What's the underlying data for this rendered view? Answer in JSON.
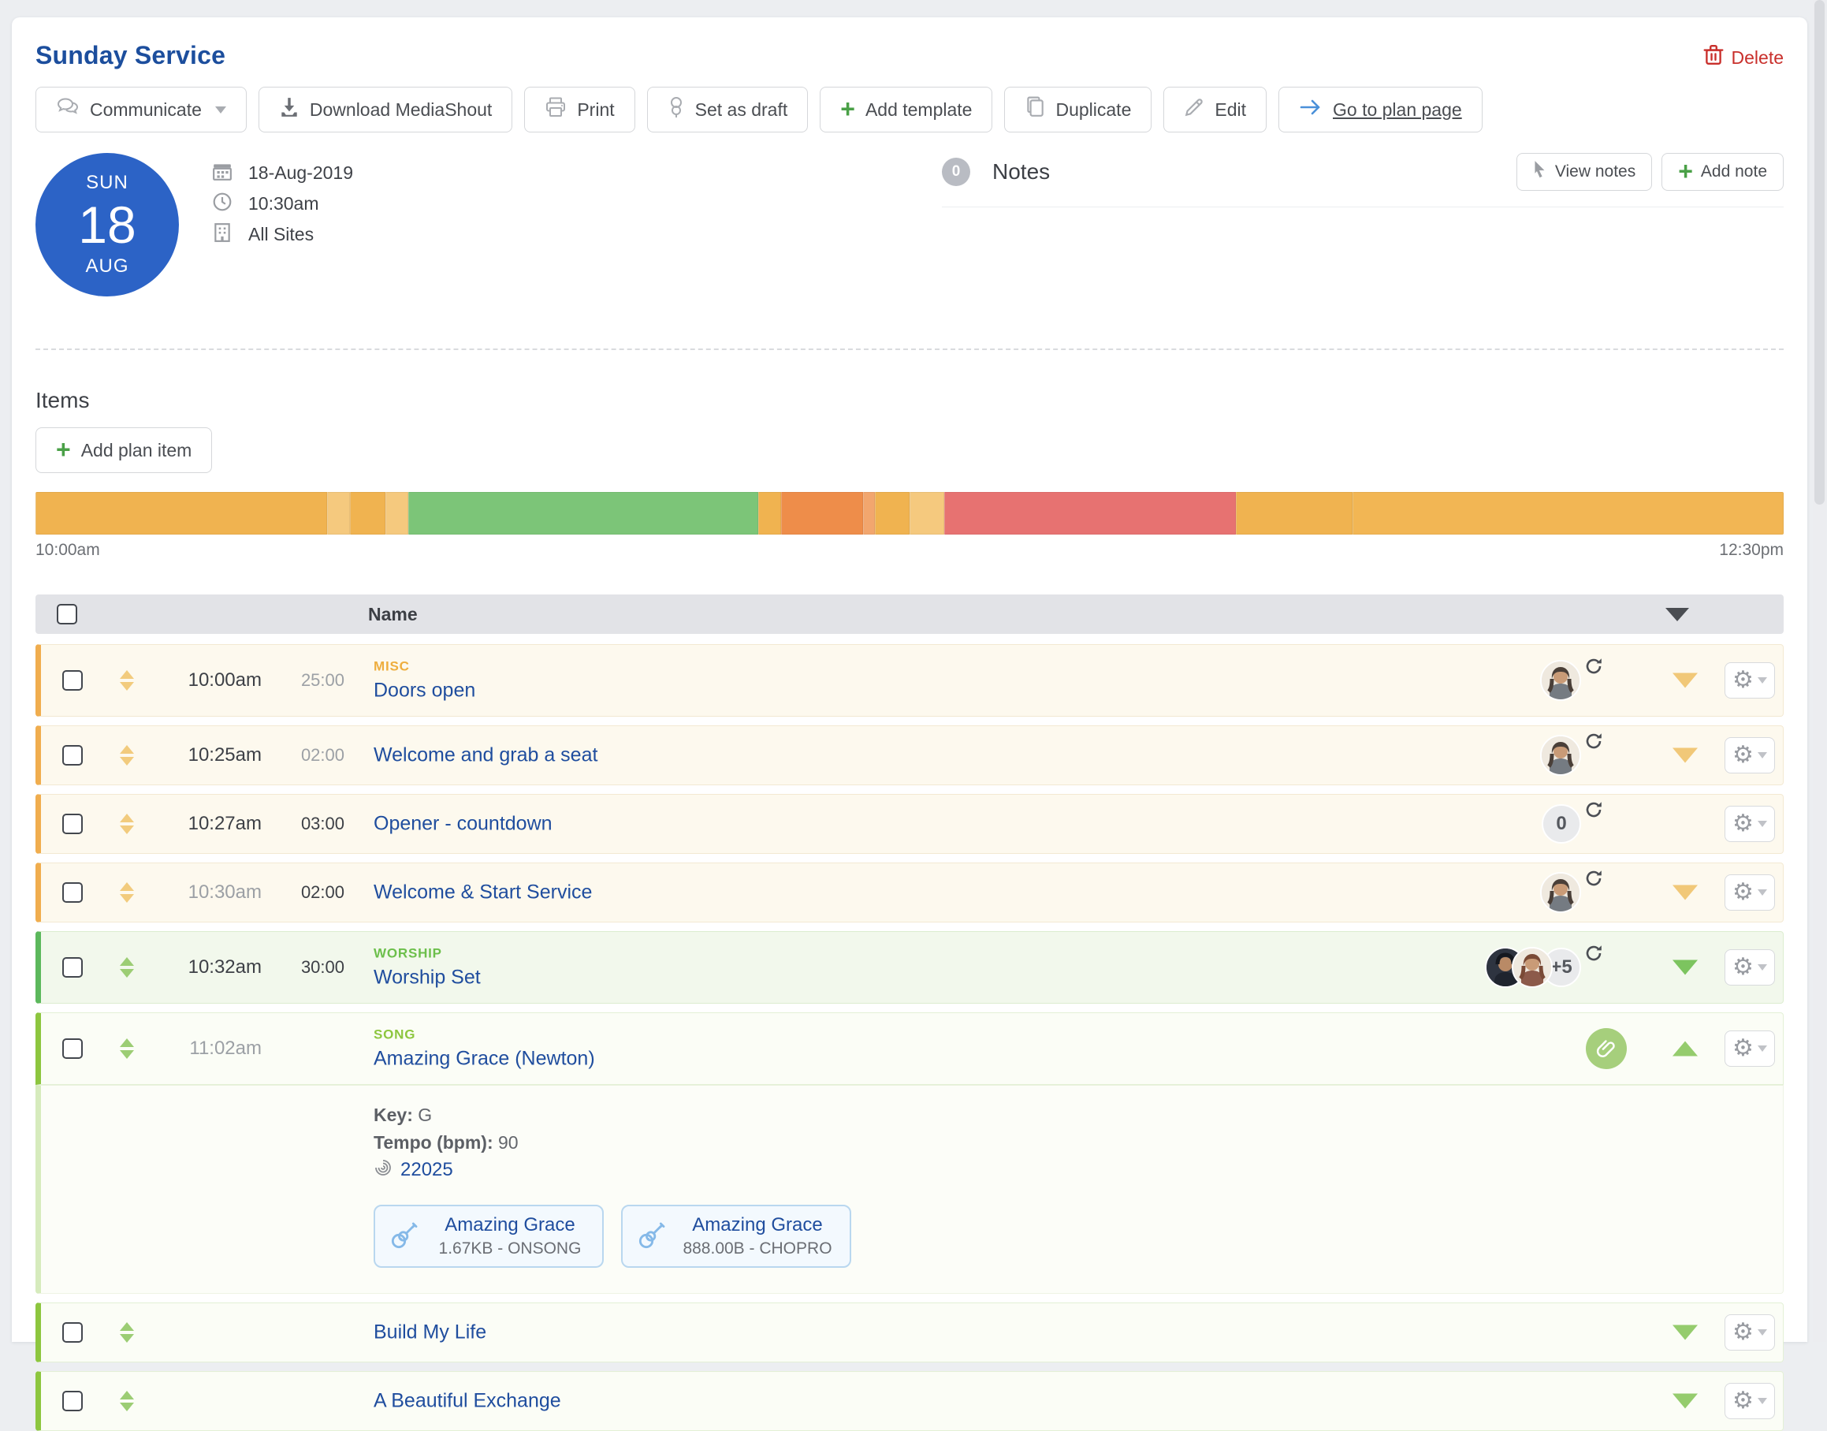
{
  "header": {
    "title": "Sunday Service",
    "delete_label": "Delete"
  },
  "toolbar": {
    "communicate": "Communicate",
    "download": "Download MediaShout",
    "print": "Print",
    "set_draft": "Set as draft",
    "add_template": "Add template",
    "duplicate": "Duplicate",
    "edit": "Edit",
    "go_plan": "Go to plan page"
  },
  "event": {
    "day_name": "SUN",
    "day": "18",
    "month": "AUG",
    "date": "18-Aug-2019",
    "time": "10:30am",
    "site": "All Sites"
  },
  "notes": {
    "count": "0",
    "title": "Notes",
    "view_label": "View notes",
    "add_label": "Add note"
  },
  "items": {
    "title": "Items",
    "add_label": "Add plan item"
  },
  "timeline": {
    "start_label": "10:00am",
    "end_label": "12:30pm",
    "total_minutes": 150,
    "segments": [
      {
        "minutes": 25,
        "color": "#f0b350"
      },
      {
        "minutes": 2,
        "color": "#f5c97e"
      },
      {
        "minutes": 3,
        "color": "#f0b350"
      },
      {
        "minutes": 2,
        "color": "#f5c97e"
      },
      {
        "minutes": 30,
        "color": "#7cc578"
      },
      {
        "minutes": 2,
        "color": "#f0b350"
      },
      {
        "minutes": 7,
        "color": "#ee8d4a"
      },
      {
        "minutes": 1,
        "color": "#f2a66e"
      },
      {
        "minutes": 3,
        "color": "#f0b350"
      },
      {
        "minutes": 3,
        "color": "#f5c97e"
      },
      {
        "minutes": 25,
        "color": "#e77271"
      },
      {
        "minutes": 10,
        "color": "#f0b350"
      },
      {
        "minutes": 37,
        "color": "#f2b654"
      }
    ]
  },
  "table": {
    "name_header": "Name"
  },
  "rows": [
    {
      "time": "10:00am",
      "duration": "25:00",
      "category": "MISC",
      "title": "Doors open"
    },
    {
      "time": "10:25am",
      "duration": "02:00",
      "category": "",
      "title": "Welcome and grab a seat"
    },
    {
      "time": "10:27am",
      "duration": "03:00",
      "category": "",
      "title": "Opener - countdown",
      "count_badge": "0"
    },
    {
      "time": "10:30am",
      "duration": "02:00",
      "category": "",
      "title": "Welcome & Start Service"
    },
    {
      "time": "10:32am",
      "duration": "30:00",
      "category": "WORSHIP",
      "title": "Worship Set",
      "extra_people": "+5"
    },
    {
      "time": "11:02am",
      "duration": "",
      "category": "SONG",
      "title": "Amazing Grace (Newton)"
    },
    {
      "title": "Build My Life"
    },
    {
      "title": "A Beautiful Exchange"
    }
  ],
  "song_detail": {
    "key_label": "Key:",
    "key_value": "G",
    "tempo_label": "Tempo (bpm):",
    "tempo_value": "90",
    "ccli_number": "22025",
    "attachments": [
      {
        "title": "Amazing Grace",
        "meta": "1.67KB - ONSONG"
      },
      {
        "title": "Amazing Grace",
        "meta": "888.00B - CHOPRO"
      }
    ]
  },
  "colors": {
    "title_blue": "#1c4e9d",
    "link_blue": "#1f4d9e",
    "delete_red": "#c9302c",
    "date_circle_blue": "#2c63c6",
    "plus_green": "#4aa047",
    "misc_amber": "#eeae3f",
    "worship_green": "#6cbf4b",
    "song_lime": "#8dc63f",
    "timeline_amber": "#f0b350",
    "timeline_green": "#7cc578",
    "timeline_orange": "#ee8d4a",
    "timeline_red": "#e77271"
  }
}
